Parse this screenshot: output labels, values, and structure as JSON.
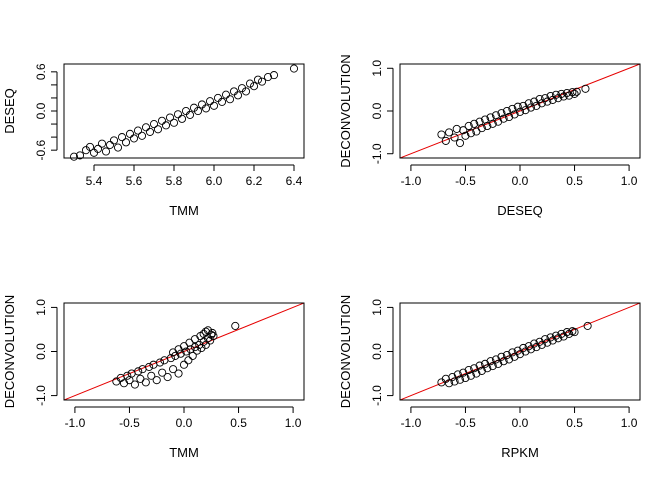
{
  "chart_data": [
    {
      "type": "scatter",
      "xlabel": "TMM",
      "ylabel": "DESEQ",
      "xlim": [
        5.25,
        6.45
      ],
      "ylim": [
        -0.72,
        0.72
      ],
      "xticks": [
        "5.4",
        "5.6",
        "5.8",
        "6.0",
        "6.2",
        "6.4"
      ],
      "xtick_values": [
        5.4,
        5.6,
        5.8,
        6.0,
        6.2,
        6.4
      ],
      "yticks": [
        "-0.6",
        "",
        "",
        "0.0",
        "",
        "",
        "0.6"
      ],
      "ytick_values": [
        -0.6,
        -0.4,
        -0.2,
        0.0,
        0.2,
        0.4,
        0.6
      ],
      "reference_line": null,
      "points": [
        [
          5.3,
          -0.7
        ],
        [
          5.33,
          -0.68
        ],
        [
          5.36,
          -0.6
        ],
        [
          5.38,
          -0.55
        ],
        [
          5.4,
          -0.64
        ],
        [
          5.42,
          -0.58
        ],
        [
          5.44,
          -0.5
        ],
        [
          5.46,
          -0.62
        ],
        [
          5.48,
          -0.52
        ],
        [
          5.5,
          -0.45
        ],
        [
          5.52,
          -0.56
        ],
        [
          5.54,
          -0.4
        ],
        [
          5.56,
          -0.48
        ],
        [
          5.58,
          -0.35
        ],
        [
          5.6,
          -0.42
        ],
        [
          5.62,
          -0.3
        ],
        [
          5.64,
          -0.38
        ],
        [
          5.66,
          -0.25
        ],
        [
          5.68,
          -0.32
        ],
        [
          5.7,
          -0.2
        ],
        [
          5.72,
          -0.28
        ],
        [
          5.74,
          -0.15
        ],
        [
          5.76,
          -0.22
        ],
        [
          5.78,
          -0.1
        ],
        [
          5.8,
          -0.18
        ],
        [
          5.82,
          -0.05
        ],
        [
          5.84,
          -0.12
        ],
        [
          5.86,
          0.0
        ],
        [
          5.88,
          -0.06
        ],
        [
          5.9,
          0.05
        ],
        [
          5.92,
          0.0
        ],
        [
          5.94,
          0.1
        ],
        [
          5.96,
          0.04
        ],
        [
          5.98,
          0.15
        ],
        [
          6.0,
          0.08
        ],
        [
          6.02,
          0.2
        ],
        [
          6.04,
          0.14
        ],
        [
          6.06,
          0.25
        ],
        [
          6.08,
          0.18
        ],
        [
          6.1,
          0.3
        ],
        [
          6.12,
          0.24
        ],
        [
          6.14,
          0.35
        ],
        [
          6.16,
          0.3
        ],
        [
          6.18,
          0.42
        ],
        [
          6.2,
          0.38
        ],
        [
          6.22,
          0.48
        ],
        [
          6.24,
          0.45
        ],
        [
          6.27,
          0.52
        ],
        [
          6.3,
          0.55
        ],
        [
          6.4,
          0.65
        ]
      ]
    },
    {
      "type": "scatter",
      "xlabel": "DESEQ",
      "ylabel": "DECONVOLUTION",
      "xlim": [
        -1.1,
        1.1
      ],
      "ylim": [
        -1.1,
        1.1
      ],
      "xticks": [
        "-1.0",
        "-0.5",
        "0.0",
        "0.5",
        "1.0"
      ],
      "xtick_values": [
        -1.0,
        -0.5,
        0.0,
        0.5,
        1.0
      ],
      "yticks": [
        "-1.0",
        "0.0",
        "1.0"
      ],
      "ytick_values": [
        -1.0,
        0.0,
        1.0
      ],
      "reference_line": {
        "slope": 1,
        "intercept": 0,
        "color": "#e60000"
      },
      "points": [
        [
          -0.72,
          -0.55
        ],
        [
          -0.68,
          -0.7
        ],
        [
          -0.65,
          -0.5
        ],
        [
          -0.6,
          -0.62
        ],
        [
          -0.58,
          -0.42
        ],
        [
          -0.55,
          -0.75
        ],
        [
          -0.52,
          -0.45
        ],
        [
          -0.5,
          -0.58
        ],
        [
          -0.47,
          -0.35
        ],
        [
          -0.45,
          -0.52
        ],
        [
          -0.42,
          -0.3
        ],
        [
          -0.4,
          -0.48
        ],
        [
          -0.37,
          -0.25
        ],
        [
          -0.35,
          -0.4
        ],
        [
          -0.32,
          -0.2
        ],
        [
          -0.3,
          -0.35
        ],
        [
          -0.27,
          -0.15
        ],
        [
          -0.25,
          -0.3
        ],
        [
          -0.22,
          -0.1
        ],
        [
          -0.2,
          -0.25
        ],
        [
          -0.17,
          -0.05
        ],
        [
          -0.15,
          -0.18
        ],
        [
          -0.12,
          0.0
        ],
        [
          -0.1,
          -0.14
        ],
        [
          -0.07,
          0.05
        ],
        [
          -0.05,
          -0.08
        ],
        [
          -0.02,
          0.1
        ],
        [
          0.0,
          -0.02
        ],
        [
          0.03,
          0.12
        ],
        [
          0.05,
          0.02
        ],
        [
          0.08,
          0.18
        ],
        [
          0.1,
          0.08
        ],
        [
          0.13,
          0.22
        ],
        [
          0.15,
          0.12
        ],
        [
          0.18,
          0.28
        ],
        [
          0.2,
          0.18
        ],
        [
          0.23,
          0.3
        ],
        [
          0.25,
          0.22
        ],
        [
          0.28,
          0.35
        ],
        [
          0.3,
          0.26
        ],
        [
          0.33,
          0.38
        ],
        [
          0.35,
          0.3
        ],
        [
          0.38,
          0.4
        ],
        [
          0.4,
          0.34
        ],
        [
          0.43,
          0.42
        ],
        [
          0.45,
          0.36
        ],
        [
          0.48,
          0.44
        ],
        [
          0.5,
          0.4
        ],
        [
          0.52,
          0.45
        ],
        [
          0.6,
          0.52
        ]
      ]
    },
    {
      "type": "scatter",
      "xlabel": "TMM",
      "ylabel": "DECONVOLUTION",
      "xlim": [
        -1.1,
        1.1
      ],
      "ylim": [
        -1.1,
        1.1
      ],
      "xticks": [
        "-1.0",
        "-0.5",
        "0.0",
        "0.5",
        "1.0"
      ],
      "xtick_values": [
        -1.0,
        -0.5,
        0.0,
        0.5,
        1.0
      ],
      "yticks": [
        "-1.0",
        "0.0",
        "1.0"
      ],
      "ytick_values": [
        -1.0,
        0.0,
        1.0
      ],
      "reference_line": {
        "slope": 1,
        "intercept": 0,
        "color": "#e60000"
      },
      "points": [
        [
          -0.62,
          -0.68
        ],
        [
          -0.58,
          -0.6
        ],
        [
          -0.55,
          -0.72
        ],
        [
          -0.52,
          -0.55
        ],
        [
          -0.5,
          -0.65
        ],
        [
          -0.48,
          -0.5
        ],
        [
          -0.45,
          -0.75
        ],
        [
          -0.42,
          -0.45
        ],
        [
          -0.4,
          -0.62
        ],
        [
          -0.38,
          -0.4
        ],
        [
          -0.35,
          -0.7
        ],
        [
          -0.32,
          -0.35
        ],
        [
          -0.3,
          -0.55
        ],
        [
          -0.28,
          -0.3
        ],
        [
          -0.25,
          -0.65
        ],
        [
          -0.22,
          -0.25
        ],
        [
          -0.2,
          -0.48
        ],
        [
          -0.18,
          -0.2
        ],
        [
          -0.15,
          -0.58
        ],
        [
          -0.12,
          -0.15
        ],
        [
          -0.1,
          -0.4
        ],
        [
          -0.08,
          -0.1
        ],
        [
          -0.05,
          -0.5
        ],
        [
          -0.03,
          -0.05
        ],
        [
          0.0,
          -0.3
        ],
        [
          0.02,
          0.0
        ],
        [
          0.04,
          -0.2
        ],
        [
          0.06,
          0.05
        ],
        [
          0.08,
          -0.1
        ],
        [
          0.1,
          0.1
        ],
        [
          0.12,
          0.02
        ],
        [
          0.14,
          0.15
        ],
        [
          0.16,
          0.08
        ],
        [
          0.18,
          0.22
        ],
        [
          0.2,
          0.15
        ],
        [
          0.22,
          0.3
        ],
        [
          0.24,
          0.25
        ],
        [
          0.25,
          0.38
        ],
        [
          0.26,
          0.42
        ],
        [
          0.27,
          0.35
        ],
        [
          0.2,
          0.45
        ],
        [
          0.15,
          0.35
        ],
        [
          0.1,
          0.28
        ],
        [
          0.05,
          0.2
        ],
        [
          0.0,
          0.12
        ],
        [
          -0.05,
          0.05
        ],
        [
          -0.1,
          -0.02
        ],
        [
          0.22,
          0.48
        ],
        [
          0.18,
          0.4
        ],
        [
          0.47,
          0.58
        ]
      ]
    },
    {
      "type": "scatter",
      "xlabel": "RPKM",
      "ylabel": "DECONVOLUTION",
      "xlim": [
        -1.1,
        1.1
      ],
      "ylim": [
        -1.1,
        1.1
      ],
      "xticks": [
        "-1.0",
        "-0.5",
        "0.0",
        "0.5",
        "1.0"
      ],
      "xtick_values": [
        -1.0,
        -0.5,
        0.0,
        0.5,
        1.0
      ],
      "yticks": [
        "-1.0",
        "0.0",
        "1.0"
      ],
      "ytick_values": [
        -1.0,
        0.0,
        1.0
      ],
      "reference_line": {
        "slope": 1,
        "intercept": 0,
        "color": "#e60000"
      },
      "points": [
        [
          -0.72,
          -0.7
        ],
        [
          -0.68,
          -0.62
        ],
        [
          -0.65,
          -0.72
        ],
        [
          -0.62,
          -0.58
        ],
        [
          -0.6,
          -0.68
        ],
        [
          -0.57,
          -0.52
        ],
        [
          -0.55,
          -0.64
        ],
        [
          -0.52,
          -0.48
        ],
        [
          -0.5,
          -0.6
        ],
        [
          -0.47,
          -0.42
        ],
        [
          -0.45,
          -0.55
        ],
        [
          -0.42,
          -0.38
        ],
        [
          -0.4,
          -0.5
        ],
        [
          -0.37,
          -0.32
        ],
        [
          -0.35,
          -0.44
        ],
        [
          -0.32,
          -0.28
        ],
        [
          -0.3,
          -0.38
        ],
        [
          -0.27,
          -0.22
        ],
        [
          -0.25,
          -0.33
        ],
        [
          -0.22,
          -0.18
        ],
        [
          -0.2,
          -0.28
        ],
        [
          -0.17,
          -0.12
        ],
        [
          -0.15,
          -0.22
        ],
        [
          -0.12,
          -0.08
        ],
        [
          -0.1,
          -0.18
        ],
        [
          -0.07,
          -0.02
        ],
        [
          -0.05,
          -0.12
        ],
        [
          -0.02,
          0.02
        ],
        [
          0.0,
          -0.06
        ],
        [
          0.03,
          0.08
        ],
        [
          0.05,
          0.0
        ],
        [
          0.08,
          0.12
        ],
        [
          0.1,
          0.05
        ],
        [
          0.13,
          0.18
        ],
        [
          0.15,
          0.1
        ],
        [
          0.18,
          0.22
        ],
        [
          0.2,
          0.15
        ],
        [
          0.23,
          0.28
        ],
        [
          0.25,
          0.2
        ],
        [
          0.28,
          0.32
        ],
        [
          0.3,
          0.25
        ],
        [
          0.33,
          0.36
        ],
        [
          0.35,
          0.3
        ],
        [
          0.38,
          0.4
        ],
        [
          0.4,
          0.34
        ],
        [
          0.43,
          0.44
        ],
        [
          0.45,
          0.4
        ],
        [
          0.48,
          0.46
        ],
        [
          0.5,
          0.44
        ],
        [
          0.62,
          0.58
        ]
      ]
    }
  ]
}
